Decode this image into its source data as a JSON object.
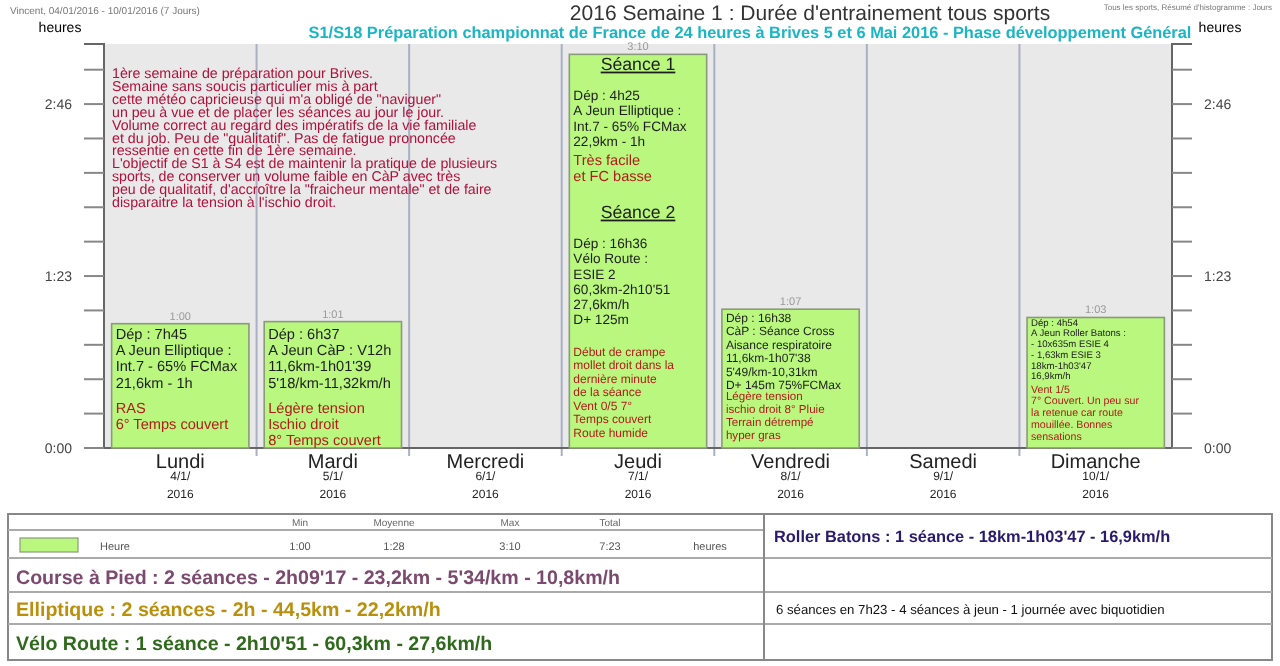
{
  "chart_data": {
    "type": "bar",
    "title": "2016 Semaine 1 : Durée d'entrainement tous sports",
    "subtitle": "S1/S18 Préparation championnat de France de 24 heures à Brives 5 et 6 Mai 2016 - Phase développement Général",
    "ylabel": "heures",
    "y2label": "heures",
    "categories": [
      "Lundi\n4/1/\n2016",
      "Mardi\n5/1/\n2016",
      "Mercredi\n6/1/\n2016",
      "Jeudi\n7/1/\n2016",
      "Vendredi\n8/1/\n2016",
      "Samedi\n9/1/\n2016",
      "Dimanche\n10/1/\n2016"
    ],
    "series": [
      {
        "name": "Heure",
        "color": "#b9f77e",
        "values": [
          1,
          1.0167,
          0,
          3.1667,
          1.1167,
          0,
          1.05
        ],
        "value_labels": [
          "1:00",
          "1:01",
          null,
          "3:10",
          "1:07",
          null,
          "1:03"
        ]
      }
    ],
    "ylim": [
      0,
      3.25
    ],
    "yticks": [
      {
        "value": 0,
        "label": "0:00"
      },
      {
        "value": 0.2767,
        "label": null
      },
      {
        "value": 0.5533,
        "label": null
      },
      {
        "value": 0.83,
        "label": null
      },
      {
        "value": 1.1067,
        "label": null
      },
      {
        "value": 1.3833,
        "label": "1:23"
      },
      {
        "value": 1.66,
        "label": null
      },
      {
        "value": 1.9367,
        "label": null
      },
      {
        "value": 2.2133,
        "label": null
      },
      {
        "value": 2.49,
        "label": null
      },
      {
        "value": 2.7667,
        "label": "2:46"
      },
      {
        "value": 3.0433,
        "label": null
      }
    ],
    "y2lim": [
      0,
      3.25
    ],
    "y2ticks": [
      {
        "value": 0,
        "label": "0:00"
      },
      {
        "value": 0.2767,
        "label": null
      },
      {
        "value": 0.5533,
        "label": null
      },
      {
        "value": 0.83,
        "label": null
      },
      {
        "value": 1.1067,
        "label": null
      },
      {
        "value": 1.3833,
        "label": "1:23"
      },
      {
        "value": 1.66,
        "label": null
      },
      {
        "value": 1.9367,
        "label": null
      },
      {
        "value": 2.2133,
        "label": null
      },
      {
        "value": 2.49,
        "label": null
      },
      {
        "value": 2.7667,
        "label": "2:46"
      },
      {
        "value": 3.0433,
        "label": null
      }
    ],
    "grid": "x",
    "legend": "bottom",
    "annotations": [
      "Vincent, 04/01/2016 - 10/01/2016 (7 Jours)",
      "Tous les sports, Résumé d'histogramme : Jours",
      "1ère semaine de préparation pour Brives.\nSemaine sans soucis particulier mis à part\ncette météo capricieuse qui m'a obligé de \"naviguer\"\nun peu à vue et de placer les séances au jour le jour.\nVolume correct au regard des impératifs de la vie familiale\net du job. Peu de \"qualitatif\". Pas de fatigue prononcée\nressentie en cette fin de 1ère semaine.\nL'objectif de S1 à S4 est de maintenir la pratique de plusieurs\nsports, de conserver un volume faible en CàP avec très\npeu de qualitatif, d'accroître la \"fraicheur mentale\" et de faire\ndisparaitre la tension à l'ischio droit.",
      "Dép : 7h45\nA Jeun Elliptique :\nInt.7 - 65% FCMax\n21,6km - 1h",
      "RAS\n6° Temps couvert",
      "Dép : 6h37\nA Jeun CàP : V12h\n11,6km-1h01'39\n5'18/km-11,32km/h",
      "Légère tension\nIschio droit\n8° Temps couvert",
      "Séance 1\n\nDép : 4h25\nA Jeun Elliptique :\nInt.7 - 65% FCMax\n22,9km - 1h",
      "Très facile\net FC basse",
      "Séance 2\n\nDép : 16h36\nVélo Route :\nESIE 2\n60,3km-2h10'51\n27,6km/h\nD+ 125m",
      "Début de crampe\nmollet droit dans la\ndernière minute\nde la séance\nVent 0/5  7°\nTemps couvert\nRoute humide",
      "Dép : 16h38\nCàP : Séance Cross\nAisance respiratoire\n11,6km-1h07'38\n5'49/km-10,31km\nD+ 145m 75%FCMax",
      "Légère tension\nischio droit 8° Pluie\nTerrain détrempé\nhyper gras",
      "Dép : 4h54\nA Jeun Roller Batons :\n- 10x635m ESIE 4\n- 1,63km ESIE 3\n18km-1h03'47\n16,9km/h",
      "Vent 1/5\n7° Couvert. Un peu sur\nla retenue car route\nmouillée. Bonnes\nsensations",
      "Min",
      "Moyenne",
      "Max",
      "Total",
      "1:00",
      "1:28",
      "3:10",
      "7:23",
      "heures",
      "Course à Pied : 2 séances - 2h09'17 - 23,2km - 5'34/km - 10,8km/h",
      "Elliptique : 2 séances - 2h - 44,5km - 22,2km/h",
      "Vélo Route : 1 séance - 2h10'51 - 60,3km - 27,6km/h",
      "Roller Batons :  1 séance - 18km-1h03'47 - 16,9km/h",
      "6 séances en 7h23 - 4 séances à jeun - 1 journée avec biquotidien"
    ]
  }
}
